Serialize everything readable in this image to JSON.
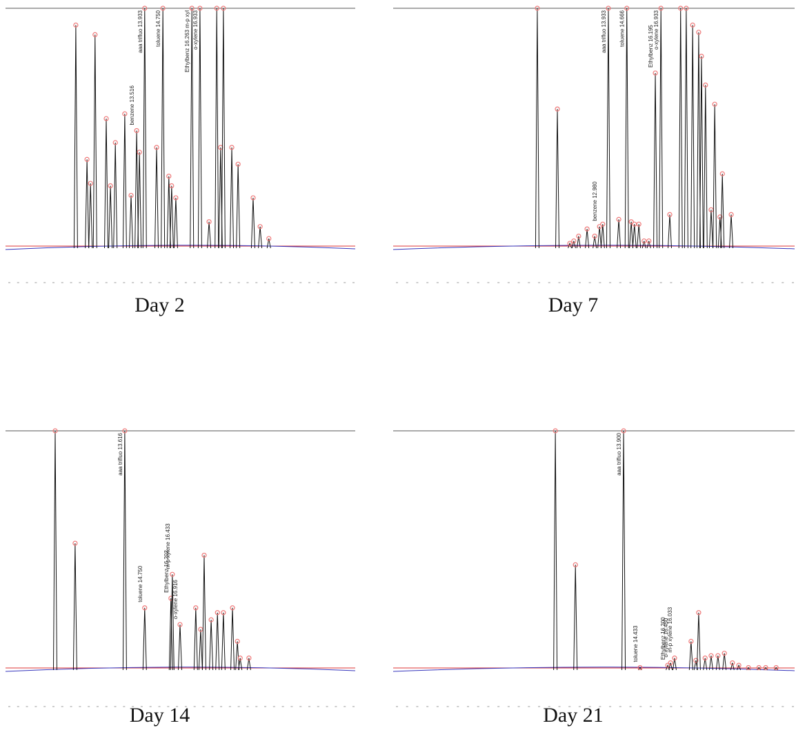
{
  "chart_data": [
    {
      "type": "chromatogram",
      "title": "Day 2",
      "xlim": [
        0,
        100
      ],
      "ylim": [
        0,
        100
      ],
      "color": "#111111",
      "x": [
        20.1,
        23.3,
        24.3,
        25.6,
        28.8,
        30.0,
        31.4,
        34.1,
        35.9,
        37.5,
        38.3,
        39.8,
        43.2,
        45.0,
        46.7,
        47.5,
        48.7,
        53.3,
        55.6,
        58.2,
        60.4,
        61.5,
        62.3,
        64.7,
        66.5,
        70.8,
        72.8,
        75.3
      ],
      "values": [
        93,
        37,
        27,
        89,
        54,
        26,
        44,
        56,
        22,
        49,
        40,
        100,
        42,
        100,
        30,
        26,
        21,
        100,
        100,
        11,
        100,
        42,
        100,
        42,
        35,
        21,
        9,
        4
      ],
      "labels": [
        null,
        null,
        null,
        null,
        null,
        null,
        null,
        null,
        null,
        "benzene 13.516",
        null,
        "aaa trifluo 13.933",
        null,
        "toluene 14.750",
        null,
        null,
        null,
        "Ethylbenz 16.263 m-p xyl",
        "o-xylene 16.933",
        null,
        null,
        null,
        null,
        null,
        null,
        null,
        null,
        null
      ]
    },
    {
      "type": "chromatogram",
      "title": "Day 7",
      "xlim": [
        0,
        100
      ],
      "ylim": [
        0,
        100
      ],
      "color": "#111111",
      "x": [
        35.9,
        40.9,
        44.0,
        45.0,
        46.2,
        48.3,
        50.2,
        51.4,
        52.2,
        53.6,
        56.2,
        58.2,
        59.3,
        60.1,
        61.2,
        62.5,
        63.7,
        65.3,
        66.7,
        68.9,
        71.6,
        73.0,
        74.6,
        76.1,
        76.8,
        77.8,
        79.2,
        80.1,
        81.4,
        82.0,
        84.2
      ],
      "values": [
        100,
        58,
        2,
        3,
        5,
        8,
        5,
        9,
        10,
        100,
        12,
        100,
        11,
        10,
        10,
        3,
        3,
        73,
        100,
        14,
        100,
        100,
        93,
        90,
        80,
        68,
        16,
        60,
        13,
        31,
        14
      ],
      "labels": [
        null,
        null,
        null,
        null,
        null,
        null,
        null,
        "benzene 12.980",
        null,
        "aaa trifluo 13.933",
        null,
        "toluene 14.666",
        null,
        null,
        null,
        null,
        null,
        "Ethylbenz 16.195",
        "o-xylene 16.933",
        null,
        null,
        null,
        null,
        null,
        null,
        null,
        null,
        null,
        null,
        null,
        null
      ]
    },
    {
      "type": "chromatogram",
      "title": "Day 14",
      "xlim": [
        0,
        100
      ],
      "ylim": [
        0,
        100
      ],
      "color": "#111111",
      "x": [
        14.2,
        19.9,
        34.1,
        39.8,
        47.3,
        47.7,
        49.9,
        54.4,
        55.8,
        56.8,
        58.8,
        60.6,
        62.3,
        64.9,
        66.3,
        67.1,
        69.6
      ],
      "values": [
        100,
        53,
        100,
        26,
        30,
        40,
        19,
        26,
        17,
        48,
        21,
        24,
        24,
        26,
        12,
        5,
        5
      ],
      "labels": [
        null,
        null,
        "aaa trifluo 13.616",
        "toluene 14.750",
        "Ethylbenz 16.202",
        "m-p xylene 16.433",
        "o-xylene 16.916",
        null,
        null,
        null,
        null,
        null,
        null,
        null,
        null,
        null,
        null
      ]
    },
    {
      "type": "chromatogram",
      "title": "Day 21",
      "xlim": [
        0,
        100
      ],
      "ylim": [
        0,
        100
      ],
      "color": "#111111",
      "x": [
        40.4,
        45.4,
        57.4,
        61.5,
        68.4,
        69.1,
        70.1,
        74.2,
        75.4,
        76.1,
        77.7,
        79.2,
        80.9,
        82.5,
        84.5,
        86.1,
        88.5,
        91.1,
        92.8,
        95.4
      ],
      "values": [
        100,
        44,
        100,
        1,
        2,
        3,
        5,
        12,
        4,
        24,
        5,
        6,
        6,
        7,
        3,
        2,
        1,
        1,
        1,
        1
      ],
      "labels": [
        null,
        null,
        "aaa trifluo 13.900",
        "toluene 14.433",
        "Ethylbenz 16.200",
        "o-xylene 16.450",
        "m-p xylene 16.033",
        null,
        null,
        null,
        null,
        null,
        null,
        null,
        null,
        null,
        null,
        null,
        null,
        null
      ]
    }
  ]
}
